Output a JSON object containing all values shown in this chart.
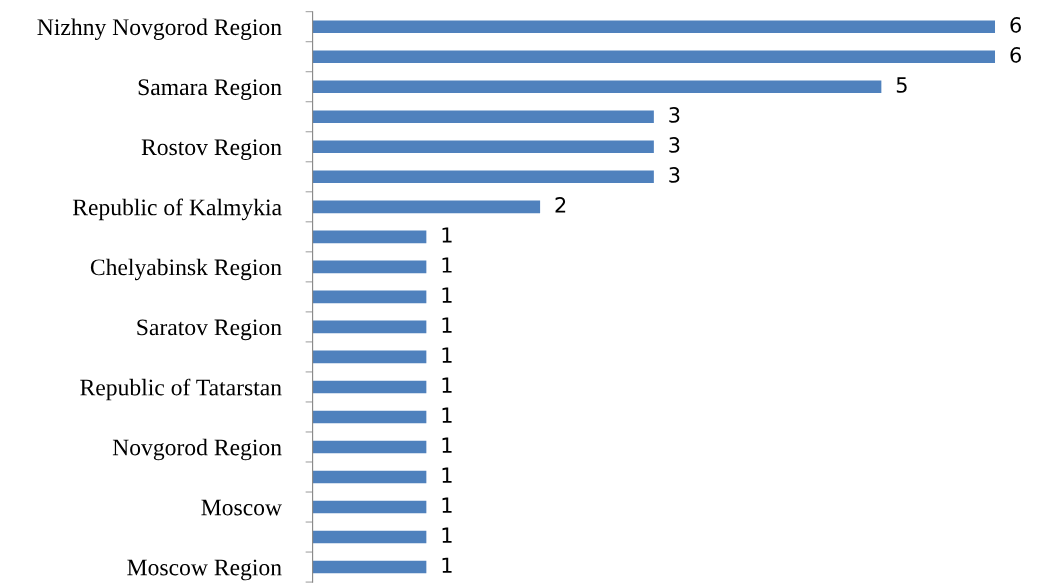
{
  "chart_data": {
    "type": "bar",
    "orientation": "horizontal",
    "categories": [
      "Nizhny Novgorod Region",
      null,
      "Samara Region",
      null,
      "Rostov Region",
      null,
      "Republic of Kalmykia",
      null,
      "Chelyabinsk Region",
      null,
      "Saratov Region",
      null,
      "Republic of Tatarstan",
      null,
      "Novgorod Region",
      null,
      "Moscow",
      null,
      "Moscow Region"
    ],
    "values": [
      6,
      6,
      5,
      3,
      3,
      3,
      2,
      1,
      1,
      1,
      1,
      1,
      1,
      1,
      1,
      1,
      1,
      1,
      1
    ],
    "color": "#4f81bd",
    "data_labels": true,
    "grid": false,
    "legend": false,
    "tick_labels": "y"
  }
}
